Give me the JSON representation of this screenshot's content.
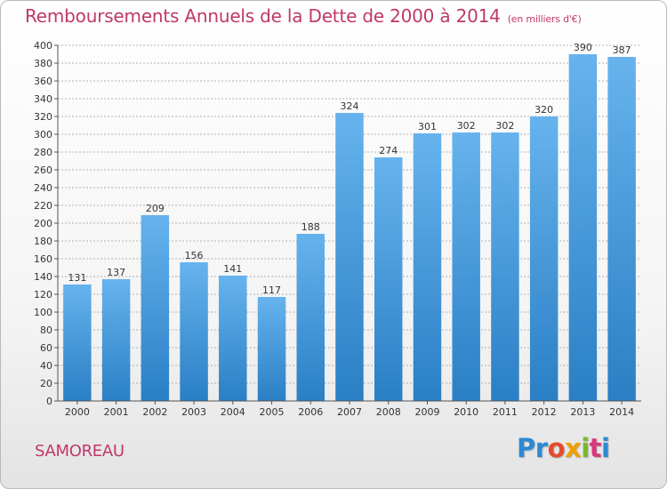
{
  "header": {
    "title": "Remboursements Annuels de la Dette de 2000 à 2014",
    "unit": "(en milliers d'€)"
  },
  "footer": {
    "town": "SAMOREAU",
    "logo_parts": [
      "Pr",
      "o",
      "x",
      "i",
      "t",
      "i"
    ]
  },
  "colors": {
    "title": "#c0386b",
    "bar_top": "#66b3ee",
    "bar_bottom": "#2a7fc4",
    "grid": "#9a9a9a"
  },
  "chart_data": {
    "type": "bar",
    "title": "Remboursements Annuels de la Dette de 2000 à 2014",
    "subtitle": "(en milliers d'€)",
    "xlabel": "",
    "ylabel": "",
    "categories": [
      "2000",
      "2001",
      "2002",
      "2003",
      "2004",
      "2005",
      "2006",
      "2007",
      "2008",
      "2009",
      "2010",
      "2011",
      "2012",
      "2013",
      "2014"
    ],
    "values": [
      131,
      137,
      209,
      156,
      141,
      117,
      188,
      324,
      274,
      301,
      302,
      302,
      320,
      390,
      387
    ],
    "ylim": [
      0,
      400
    ],
    "ytick_step": 20,
    "grid": true,
    "legend": "none"
  }
}
